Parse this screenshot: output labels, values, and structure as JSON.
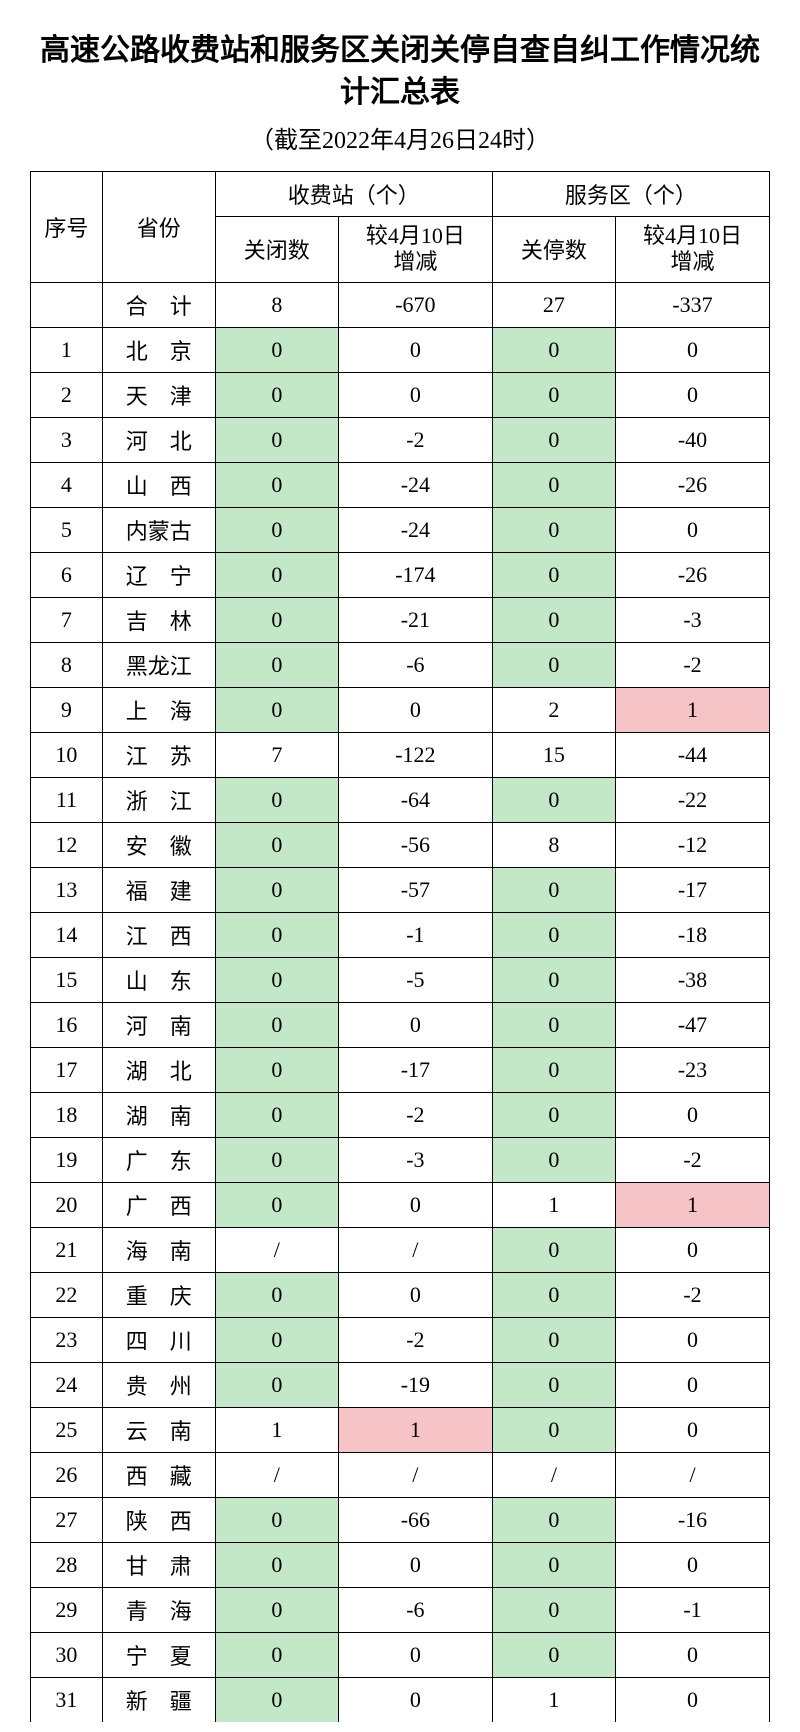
{
  "title": "高速公路收费站和服务区关闭关停自查自纠工作情况统计汇总表",
  "subtitle": "（截至2022年4月26日24时）",
  "colors": {
    "green": "#c2e8c8",
    "pink": "#f6c4c7",
    "border": "#000000",
    "text": "#000000",
    "bg": "#ffffff"
  },
  "fonts": {
    "title_size": 30,
    "subtitle_size": 24,
    "cell_size": 22
  },
  "headers": {
    "idx": "序号",
    "prov": "省份",
    "group_toll": "收费站（个）",
    "group_service": "服务区（个）",
    "toll_closed": "关闭数",
    "toll_delta_l1": "较4月10日",
    "toll_delta_l2": "增减",
    "svc_closed": "关停数",
    "svc_delta_l1": "较4月10日",
    "svc_delta_l2": "增减"
  },
  "total": {
    "label": "合　计",
    "toll_closed": "8",
    "toll_delta": "-670",
    "svc_closed": "27",
    "svc_delta": "-337"
  },
  "rows": [
    {
      "idx": "1",
      "prov": "北　京",
      "a": "0",
      "b": "0",
      "c": "0",
      "d": "0",
      "ca": "green",
      "cb": "",
      "cc": "green",
      "cd": ""
    },
    {
      "idx": "2",
      "prov": "天　津",
      "a": "0",
      "b": "0",
      "c": "0",
      "d": "0",
      "ca": "green",
      "cb": "",
      "cc": "green",
      "cd": ""
    },
    {
      "idx": "3",
      "prov": "河　北",
      "a": "0",
      "b": "-2",
      "c": "0",
      "d": "-40",
      "ca": "green",
      "cb": "",
      "cc": "green",
      "cd": ""
    },
    {
      "idx": "4",
      "prov": "山　西",
      "a": "0",
      "b": "-24",
      "c": "0",
      "d": "-26",
      "ca": "green",
      "cb": "",
      "cc": "green",
      "cd": ""
    },
    {
      "idx": "5",
      "prov": "内蒙古",
      "a": "0",
      "b": "-24",
      "c": "0",
      "d": "0",
      "ca": "green",
      "cb": "",
      "cc": "green",
      "cd": ""
    },
    {
      "idx": "6",
      "prov": "辽　宁",
      "a": "0",
      "b": "-174",
      "c": "0",
      "d": "-26",
      "ca": "green",
      "cb": "",
      "cc": "green",
      "cd": ""
    },
    {
      "idx": "7",
      "prov": "吉　林",
      "a": "0",
      "b": "-21",
      "c": "0",
      "d": "-3",
      "ca": "green",
      "cb": "",
      "cc": "green",
      "cd": ""
    },
    {
      "idx": "8",
      "prov": "黑龙江",
      "a": "0",
      "b": "-6",
      "c": "0",
      "d": "-2",
      "ca": "green",
      "cb": "",
      "cc": "green",
      "cd": ""
    },
    {
      "idx": "9",
      "prov": "上　海",
      "a": "0",
      "b": "0",
      "c": "2",
      "d": "1",
      "ca": "green",
      "cb": "",
      "cc": "",
      "cd": "pink"
    },
    {
      "idx": "10",
      "prov": "江　苏",
      "a": "7",
      "b": "-122",
      "c": "15",
      "d": "-44",
      "ca": "",
      "cb": "",
      "cc": "",
      "cd": ""
    },
    {
      "idx": "11",
      "prov": "浙　江",
      "a": "0",
      "b": "-64",
      "c": "0",
      "d": "-22",
      "ca": "green",
      "cb": "",
      "cc": "green",
      "cd": ""
    },
    {
      "idx": "12",
      "prov": "安　徽",
      "a": "0",
      "b": "-56",
      "c": "8",
      "d": "-12",
      "ca": "green",
      "cb": "",
      "cc": "",
      "cd": ""
    },
    {
      "idx": "13",
      "prov": "福　建",
      "a": "0",
      "b": "-57",
      "c": "0",
      "d": "-17",
      "ca": "green",
      "cb": "",
      "cc": "green",
      "cd": ""
    },
    {
      "idx": "14",
      "prov": "江　西",
      "a": "0",
      "b": "-1",
      "c": "0",
      "d": "-18",
      "ca": "green",
      "cb": "",
      "cc": "green",
      "cd": ""
    },
    {
      "idx": "15",
      "prov": "山　东",
      "a": "0",
      "b": "-5",
      "c": "0",
      "d": "-38",
      "ca": "green",
      "cb": "",
      "cc": "green",
      "cd": ""
    },
    {
      "idx": "16",
      "prov": "河　南",
      "a": "0",
      "b": "0",
      "c": "0",
      "d": "-47",
      "ca": "green",
      "cb": "",
      "cc": "green",
      "cd": ""
    },
    {
      "idx": "17",
      "prov": "湖　北",
      "a": "0",
      "b": "-17",
      "c": "0",
      "d": "-23",
      "ca": "green",
      "cb": "",
      "cc": "green",
      "cd": ""
    },
    {
      "idx": "18",
      "prov": "湖　南",
      "a": "0",
      "b": "-2",
      "c": "0",
      "d": "0",
      "ca": "green",
      "cb": "",
      "cc": "green",
      "cd": ""
    },
    {
      "idx": "19",
      "prov": "广　东",
      "a": "0",
      "b": "-3",
      "c": "0",
      "d": "-2",
      "ca": "green",
      "cb": "",
      "cc": "green",
      "cd": ""
    },
    {
      "idx": "20",
      "prov": "广　西",
      "a": "0",
      "b": "0",
      "c": "1",
      "d": "1",
      "ca": "green",
      "cb": "",
      "cc": "",
      "cd": "pink"
    },
    {
      "idx": "21",
      "prov": "海　南",
      "a": "/",
      "b": "/",
      "c": "0",
      "d": "0",
      "ca": "",
      "cb": "",
      "cc": "green",
      "cd": ""
    },
    {
      "idx": "22",
      "prov": "重　庆",
      "a": "0",
      "b": "0",
      "c": "0",
      "d": "-2",
      "ca": "green",
      "cb": "",
      "cc": "green",
      "cd": ""
    },
    {
      "idx": "23",
      "prov": "四　川",
      "a": "0",
      "b": "-2",
      "c": "0",
      "d": "0",
      "ca": "green",
      "cb": "",
      "cc": "green",
      "cd": ""
    },
    {
      "idx": "24",
      "prov": "贵　州",
      "a": "0",
      "b": "-19",
      "c": "0",
      "d": "0",
      "ca": "green",
      "cb": "",
      "cc": "green",
      "cd": ""
    },
    {
      "idx": "25",
      "prov": "云　南",
      "a": "1",
      "b": "1",
      "c": "0",
      "d": "0",
      "ca": "",
      "cb": "pink",
      "cc": "green",
      "cd": ""
    },
    {
      "idx": "26",
      "prov": "西　藏",
      "a": "/",
      "b": "/",
      "c": "/",
      "d": "/",
      "ca": "",
      "cb": "",
      "cc": "",
      "cd": ""
    },
    {
      "idx": "27",
      "prov": "陕　西",
      "a": "0",
      "b": "-66",
      "c": "0",
      "d": "-16",
      "ca": "green",
      "cb": "",
      "cc": "green",
      "cd": ""
    },
    {
      "idx": "28",
      "prov": "甘　肃",
      "a": "0",
      "b": "0",
      "c": "0",
      "d": "0",
      "ca": "green",
      "cb": "",
      "cc": "green",
      "cd": ""
    },
    {
      "idx": "29",
      "prov": "青　海",
      "a": "0",
      "b": "-6",
      "c": "0",
      "d": "-1",
      "ca": "green",
      "cb": "",
      "cc": "green",
      "cd": ""
    },
    {
      "idx": "30",
      "prov": "宁　夏",
      "a": "0",
      "b": "0",
      "c": "0",
      "d": "0",
      "ca": "green",
      "cb": "",
      "cc": "green",
      "cd": ""
    },
    {
      "idx": "31",
      "prov": "新　疆",
      "a": "0",
      "b": "0",
      "c": "1",
      "d": "0",
      "ca": "green",
      "cb": "",
      "cc": "",
      "cd": ""
    }
  ]
}
